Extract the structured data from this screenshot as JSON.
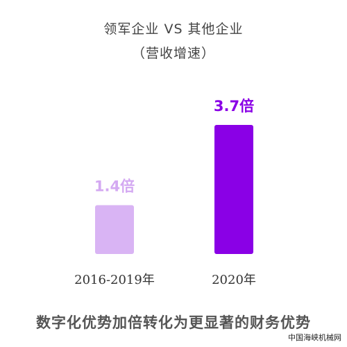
{
  "chart_data": {
    "type": "bar",
    "title": "领军企业 VS 其他企业",
    "subtitle": "（营收增速）",
    "categories": [
      "2016-2019年",
      "2020年"
    ],
    "values": [
      1.4,
      3.7
    ],
    "value_labels": [
      "1.4倍",
      "3.7倍"
    ],
    "colors": [
      "#D9B4F4",
      "#8A00E6"
    ],
    "label_colors": [
      "#D4A9F2",
      "#8A00E6"
    ],
    "ylim": [
      0,
      3.7
    ],
    "grid": false,
    "caption": "数字化优势加倍转化为更显著的财务优势",
    "watermark": "中国海峡机械网"
  }
}
